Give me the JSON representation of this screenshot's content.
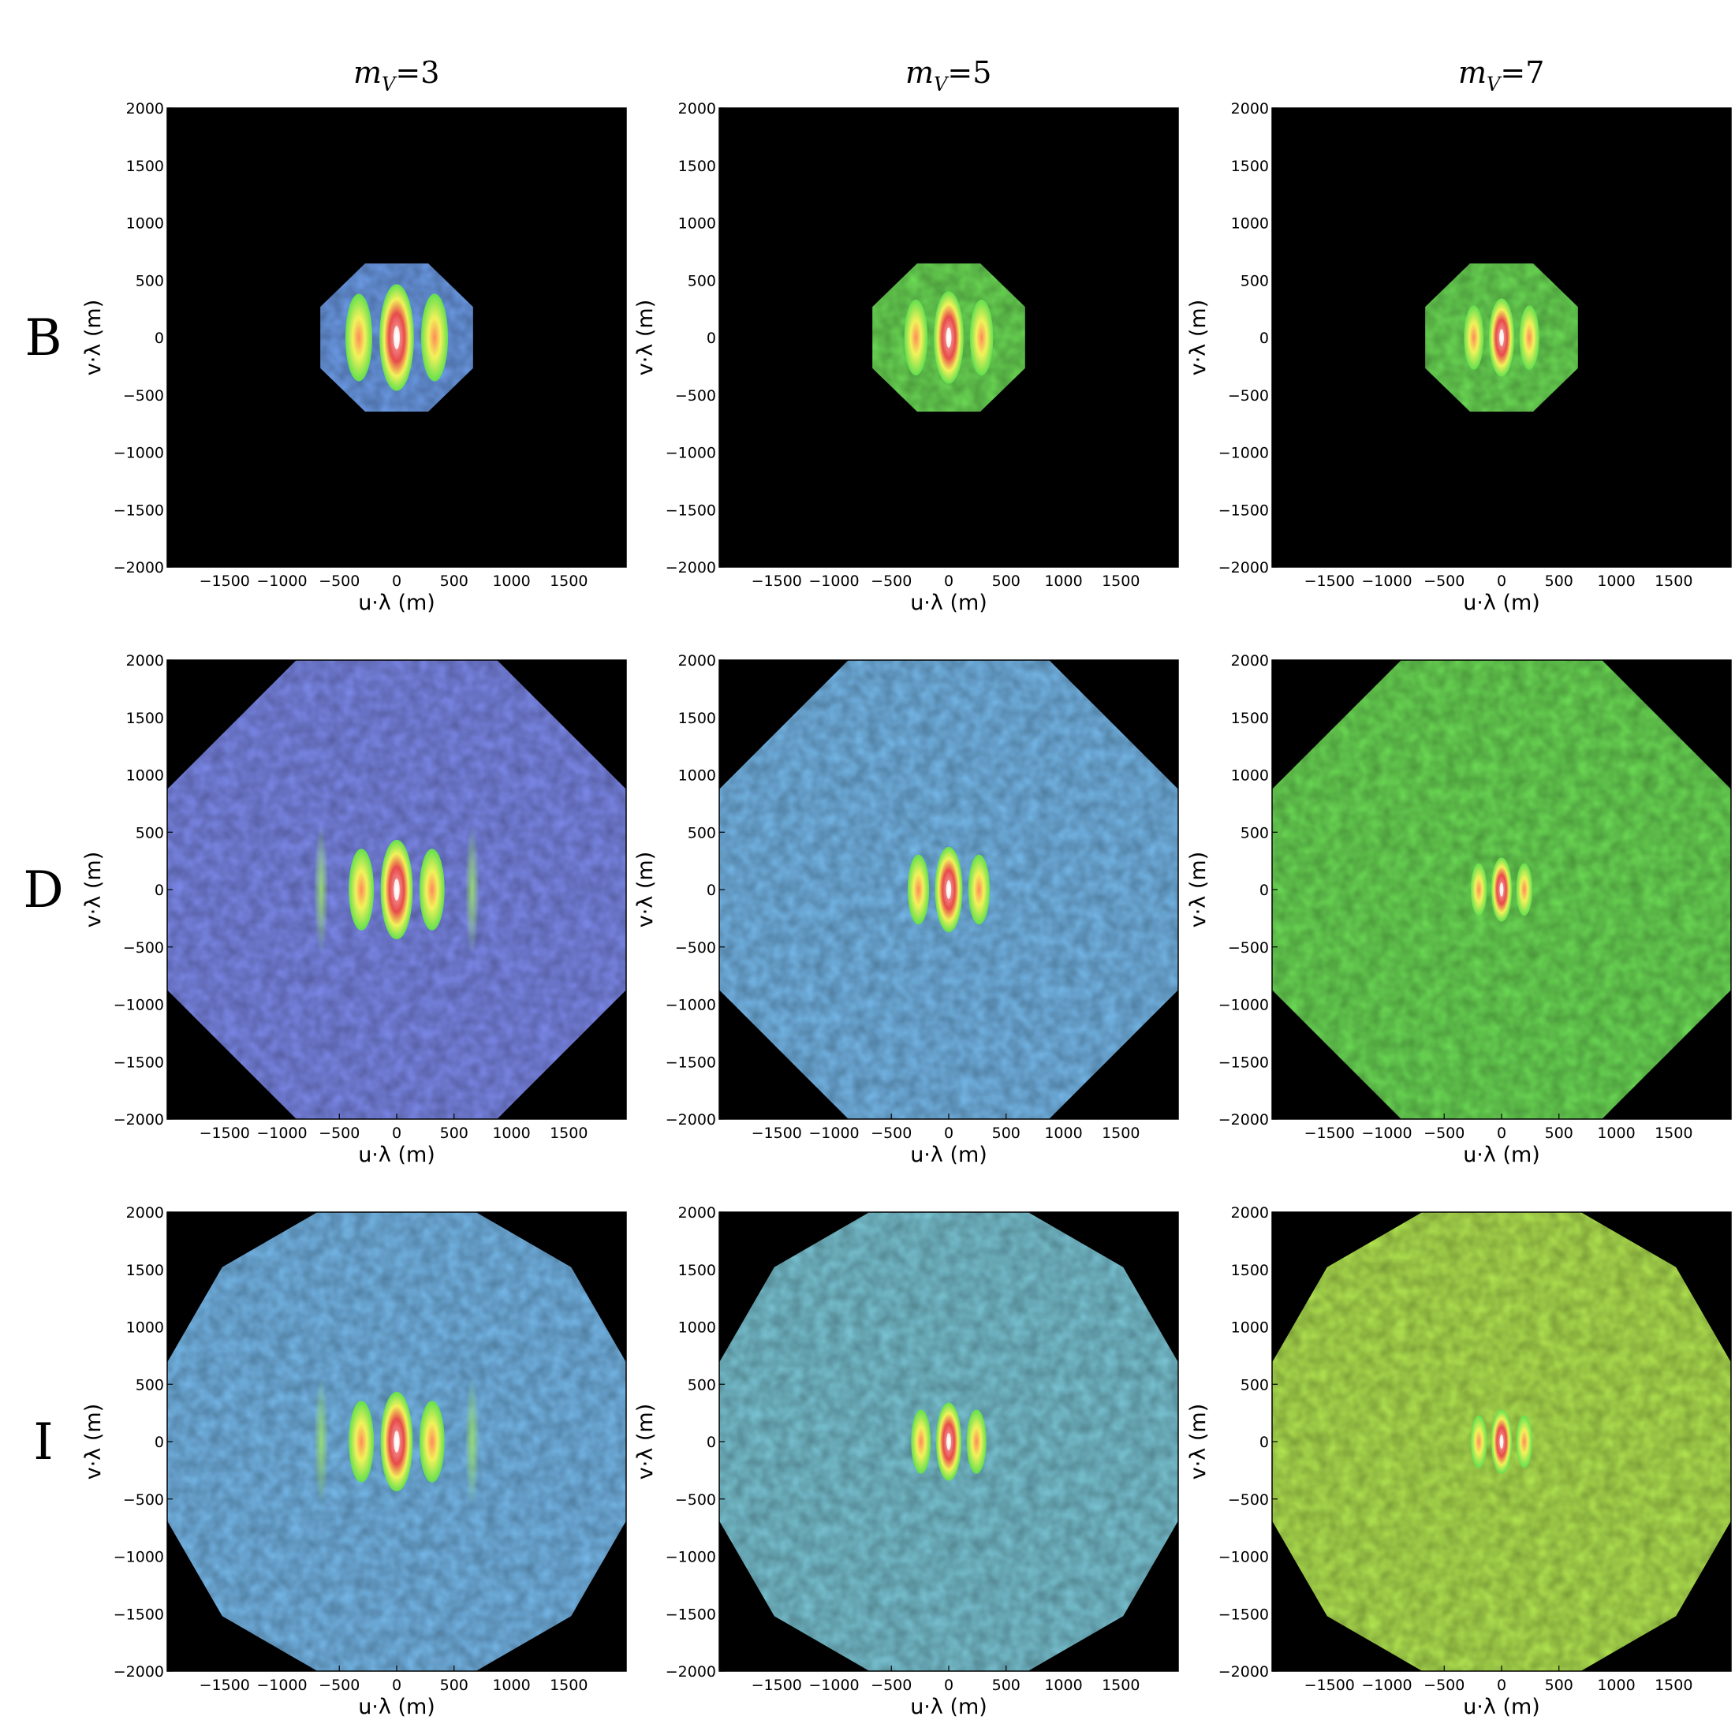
{
  "chart_data": {
    "type": "heatmap",
    "layout": "3x3 grid of uv-plane maps",
    "column_titles": [
      "m",
      "m",
      "m"
    ],
    "column_subscripts": [
      "V",
      "V",
      "V"
    ],
    "column_values": [
      "=3",
      "=5",
      "=7"
    ],
    "row_labels": [
      "B",
      "D",
      "I"
    ],
    "xlabel": "u·λ (m)",
    "ylabel": "v·λ (m)",
    "xlim": [
      -2000,
      2000
    ],
    "ylim": [
      -2000,
      2000
    ],
    "xticks": [
      -1500,
      -1000,
      -500,
      0,
      500,
      1000,
      1500
    ],
    "yticks": [
      -2000,
      -1500,
      -1000,
      -500,
      0,
      500,
      1000,
      1500,
      2000
    ],
    "xtick_labels": [
      "−1500",
      "−1000",
      "−500",
      "0",
      "500",
      "1000",
      "1500"
    ],
    "ytick_labels": [
      "−2000",
      "−1500",
      "−1000",
      "−500",
      "0",
      "500",
      "1000",
      "1500",
      "2000"
    ],
    "background_color": "#000000",
    "colors": {
      "low": "#5a52e0",
      "mid_low": "#6fb0f0",
      "mid": "#63e04f",
      "mid_high": "#f2f25a",
      "high": "#e84a4a",
      "peak": "#ffffff"
    },
    "panels": [
      {
        "row": "B",
        "column": "=3",
        "coverage_radius": 720,
        "coverage_sides": 8,
        "background_level": "blue",
        "central_lobe_halfwidth": 150,
        "side_lobes": 1
      },
      {
        "row": "B",
        "column": "=5",
        "coverage_radius": 720,
        "coverage_sides": 8,
        "background_level": "green",
        "central_lobe_halfwidth": 130,
        "side_lobes": 1
      },
      {
        "row": "B",
        "column": "=7",
        "coverage_radius": 720,
        "coverage_sides": 8,
        "background_level": "green",
        "central_lobe_halfwidth": 110,
        "side_lobes": 1
      },
      {
        "row": "D",
        "column": "=3",
        "coverage_radius": 2200,
        "coverage_sides": 8,
        "background_level": "purple-blue",
        "central_lobe_halfwidth": 140,
        "side_lobes": 2
      },
      {
        "row": "D",
        "column": "=5",
        "coverage_radius": 2200,
        "coverage_sides": 8,
        "background_level": "cyan",
        "central_lobe_halfwidth": 120,
        "side_lobes": 1
      },
      {
        "row": "D",
        "column": "=7",
        "coverage_radius": 2200,
        "coverage_sides": 8,
        "background_level": "green",
        "central_lobe_halfwidth": 90,
        "side_lobes": 1
      },
      {
        "row": "I",
        "column": "=3",
        "coverage_radius": 2150,
        "coverage_sides": 12,
        "background_level": "cyan",
        "central_lobe_halfwidth": 140,
        "side_lobes": 2
      },
      {
        "row": "I",
        "column": "=5",
        "coverage_radius": 2150,
        "coverage_sides": 12,
        "background_level": "cyan-green",
        "central_lobe_halfwidth": 110,
        "side_lobes": 1
      },
      {
        "row": "I",
        "column": "=7",
        "coverage_radius": 2150,
        "coverage_sides": 12,
        "background_level": "yellow-green",
        "central_lobe_halfwidth": 90,
        "side_lobes": 1
      }
    ]
  }
}
